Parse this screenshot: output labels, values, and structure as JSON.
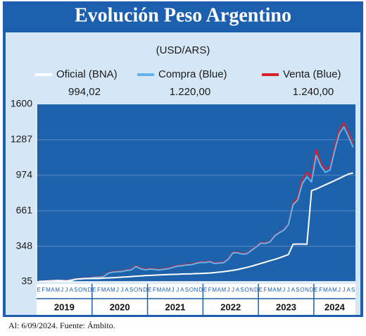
{
  "chart_data": {
    "type": "line",
    "title": "Evolución Peso Argentino",
    "subtitle": "(USD/ARS)",
    "note": "Al: 6/09/2024. Fuente: Ámbito.",
    "categories": [
      "E",
      "F",
      "M",
      "A",
      "M",
      "J",
      "J",
      "A",
      "S",
      "O",
      "N",
      "D",
      "E",
      "F",
      "M",
      "A",
      "M",
      "J",
      "J",
      "A",
      "S",
      "O",
      "N",
      "D",
      "E",
      "F",
      "M",
      "A",
      "M",
      "J",
      "J",
      "A",
      "S",
      "O",
      "N",
      "D",
      "E",
      "F",
      "M",
      "A",
      "M",
      "J",
      "J",
      "A",
      "S",
      "O",
      "N",
      "D",
      "E",
      "F",
      "M",
      "A",
      "M",
      "J",
      "J",
      "A",
      "S",
      "O",
      "N",
      "D",
      "E",
      "F",
      "M",
      "A",
      "M",
      "J",
      "J",
      "A",
      "S"
    ],
    "years": [
      "2019",
      "2020",
      "2021",
      "2022",
      "2023",
      "2024"
    ],
    "ylim": [
      35,
      1600
    ],
    "yticks": [
      35,
      348,
      661,
      974,
      1287,
      1600
    ],
    "grid": true,
    "series": [
      {
        "name": "Venta (Blue)",
        "color": "#d7202c",
        "legend_value": "1.240,00",
        "values": [
          39,
          41,
          43,
          45,
          48,
          46,
          44,
          56,
          59,
          65,
          67,
          70,
          78,
          79,
          85,
          114,
          124,
          127,
          130,
          139,
          145,
          175,
          155,
          145,
          152,
          149,
          143,
          150,
          155,
          167,
          178,
          181,
          188,
          190,
          202,
          210,
          210,
          217,
          201,
          205,
          208,
          240,
          295,
          295,
          284,
          286,
          317,
          346,
          381,
          377,
          391,
          443,
          472,
          494,
          545,
          735,
          775,
          940,
          1000,
          955,
          1200,
          1080,
          1030,
          1045,
          1220,
          1375,
          1435,
          1355,
          1240
        ]
      },
      {
        "name": "Compra (Blue)",
        "color": "#62b4ea",
        "legend_value": "1.220,00",
        "values": [
          37,
          39,
          41,
          43,
          46,
          44,
          42,
          54,
          57,
          63,
          65,
          68,
          74,
          75,
          81,
          110,
          120,
          123,
          126,
          135,
          140,
          170,
          150,
          140,
          147,
          144,
          138,
          145,
          150,
          162,
          173,
          176,
          183,
          185,
          197,
          205,
          205,
          212,
          196,
          200,
          203,
          235,
          290,
          290,
          279,
          281,
          312,
          341,
          376,
          372,
          386,
          438,
          467,
          489,
          540,
          715,
          755,
          900,
          960,
          915,
          1150,
          1055,
          1000,
          1020,
          1190,
          1340,
          1400,
          1315,
          1220
        ]
      },
      {
        "name": "Oficial (BNA)",
        "color": "#ffffff",
        "legend_value": "994,02",
        "values": [
          38,
          40,
          42,
          44,
          46,
          45,
          43,
          45,
          58,
          60,
          63,
          63,
          64,
          64,
          67,
          69,
          71,
          73,
          76,
          78,
          81,
          84,
          86,
          89,
          91,
          93,
          95,
          97,
          99,
          100,
          101,
          103,
          104,
          105,
          107,
          108,
          110,
          112,
          116,
          120,
          124,
          130,
          136,
          143,
          152,
          162,
          172,
          184,
          196,
          208,
          221,
          232,
          245,
          260,
          275,
          366,
          367,
          367,
          366,
          838,
          853,
          871,
          890,
          908,
          927,
          946,
          966,
          985,
          994.02
        ]
      }
    ]
  }
}
